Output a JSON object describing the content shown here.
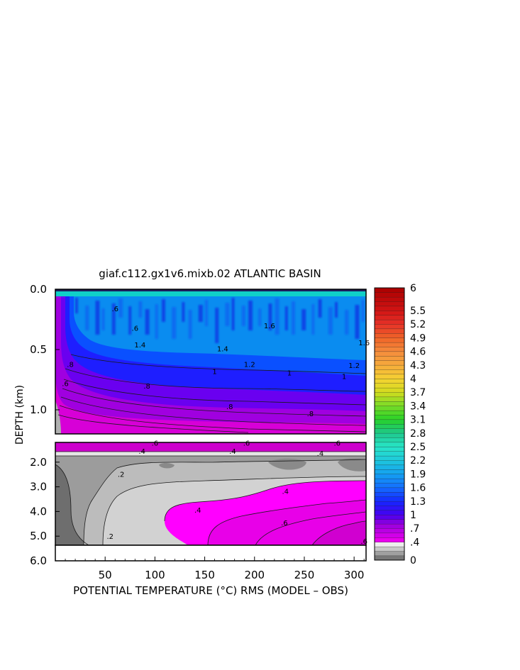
{
  "chart_data": {
    "type": "heatmap",
    "title": "giaf.c112.gx1v6.mixb.02 ATLANTIC BASIN",
    "xlabel": "POTENTIAL TEMPERATURE (°C) RMS (MODEL – OBS)",
    "ylabel": "DEPTH (km)",
    "xlim": [
      0,
      312
    ],
    "x_ticks": [
      "50",
      "100",
      "150",
      "200",
      "250",
      "300"
    ],
    "upper_panel": {
      "ylim": [
        0.0,
        1.2
      ],
      "y_ticks": [
        "0.0",
        "0.5",
        "1.0"
      ],
      "contour_labels": [
        {
          "text": "1.4",
          "x": 85,
          "y": 0.46
        },
        {
          "text": "1.6",
          "x": 215,
          "y": 0.3
        },
        {
          "text": "1.6",
          "x": 310,
          "y": 0.44
        },
        {
          "text": "1.4",
          "x": 168,
          "y": 0.49
        },
        {
          "text": "1.2",
          "x": 195,
          "y": 0.62
        },
        {
          "text": "1",
          "x": 160,
          "y": 0.68
        },
        {
          "text": "1",
          "x": 235,
          "y": 0.69
        },
        {
          "text": "1.2",
          "x": 300,
          "y": 0.63
        },
        {
          "text": "1",
          "x": 290,
          "y": 0.72
        },
        {
          "text": ".8",
          "x": 15,
          "y": 0.62
        },
        {
          "text": ".8",
          "x": 92,
          "y": 0.8
        },
        {
          "text": ".8",
          "x": 175,
          "y": 0.97
        },
        {
          "text": ".8",
          "x": 256,
          "y": 1.03
        },
        {
          "text": ".6",
          "x": 10,
          "y": 0.78
        },
        {
          "text": ".6",
          "x": 60,
          "y": 0.16
        },
        {
          "text": ".6",
          "x": 80,
          "y": 0.32
        }
      ]
    },
    "lower_panel": {
      "ylim": [
        1.2,
        6.0
      ],
      "y_ticks": [
        "2.0",
        "3.0",
        "4.0",
        "5.0",
        "6.0"
      ],
      "contour_labels": [
        {
          "text": ".6",
          "x": 100,
          "y": 1.22
        },
        {
          "text": ".6",
          "x": 192,
          "y": 1.22
        },
        {
          "text": ".6",
          "x": 283,
          "y": 1.22
        },
        {
          "text": ".4",
          "x": 87,
          "y": 1.55
        },
        {
          "text": ".4",
          "x": 178,
          "y": 1.55
        },
        {
          "text": ".4",
          "x": 266,
          "y": 1.63
        },
        {
          "text": ".2",
          "x": 66,
          "y": 2.48
        },
        {
          "text": ".2",
          "x": 55,
          "y": 5.0
        },
        {
          "text": ".4",
          "x": 231,
          "y": 3.17
        },
        {
          "text": ".4",
          "x": 143,
          "y": 3.93
        },
        {
          "text": ".6",
          "x": 230,
          "y": 4.45
        },
        {
          "text": ".6",
          "x": 310,
          "y": 5.2
        }
      ]
    },
    "colorbar": {
      "range": [
        0,
        6
      ],
      "step": 0.1,
      "labels": [
        "6",
        "5.5",
        "5.2",
        "4.9",
        "4.6",
        "4.3",
        "4",
        "3.7",
        "3.4",
        "3.1",
        "2.8",
        "2.5",
        "2.2",
        "1.9",
        "1.6",
        "1.3",
        "1",
        ".7",
        ".4",
        "0"
      ]
    }
  }
}
